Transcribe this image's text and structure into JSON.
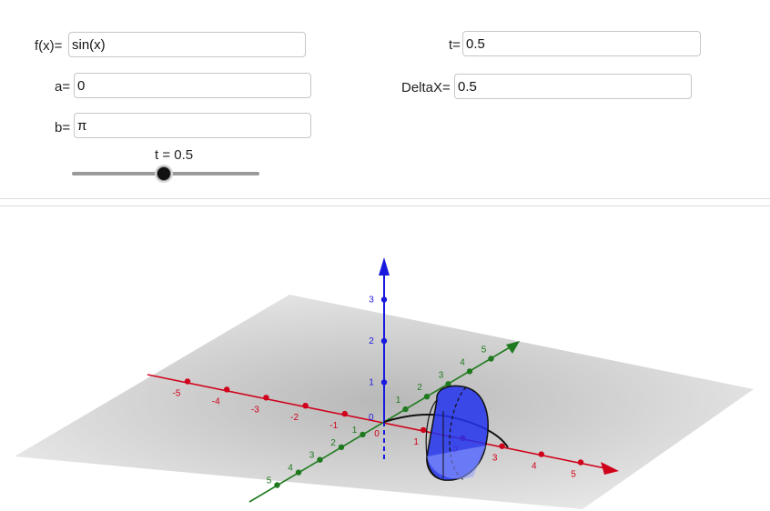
{
  "inputs": {
    "f": {
      "label": "f(x)=",
      "value": "sin(x)"
    },
    "a": {
      "label": "a=",
      "value": "0"
    },
    "b": {
      "label": "b=",
      "value": "π"
    },
    "t": {
      "label": "t=",
      "value": "0.5"
    },
    "deltax": {
      "label": "DeltaX=",
      "value": "0.5"
    }
  },
  "slider": {
    "caption": "t = 0.5",
    "value": 0.5,
    "min": 0,
    "max": 1
  },
  "axes": {
    "x_ticks": [
      "-5",
      "-4",
      "-3",
      "-2",
      "-1",
      "0",
      "1",
      "2",
      "3",
      "4",
      "5"
    ],
    "y_ticks": [
      "1",
      "2",
      "3",
      "4",
      "5"
    ],
    "z_ticks": [
      "1",
      "2",
      "3"
    ],
    "colors": {
      "x": "#d0021b",
      "y": "#1f7a1f",
      "z": "#1a1adf",
      "solid": "#2233ee"
    }
  }
}
